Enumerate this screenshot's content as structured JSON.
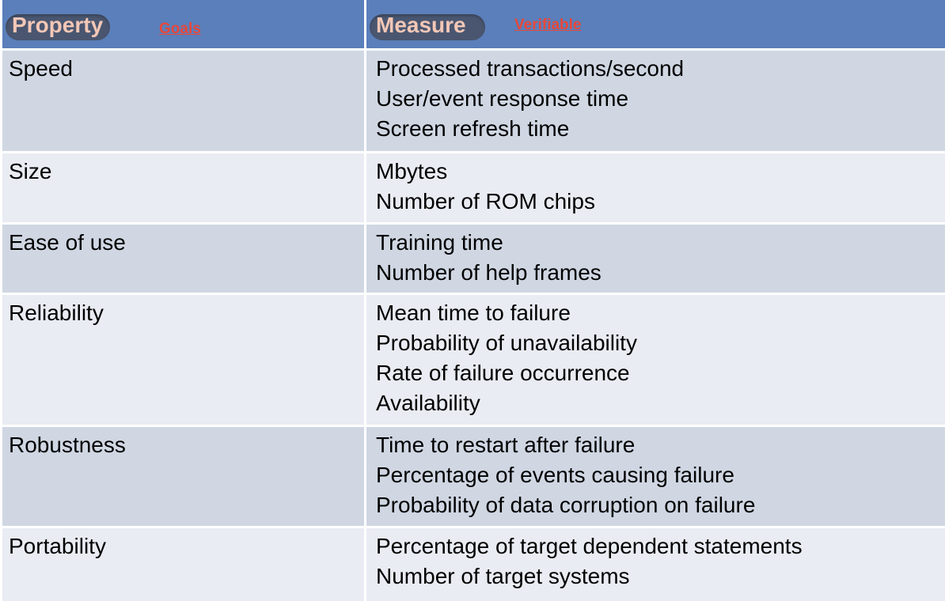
{
  "header": {
    "property_label": "Property",
    "goals_label": "Goals",
    "measure_label": "Measure",
    "verifiable_label": "Verifiable"
  },
  "rows": [
    {
      "property": "Speed",
      "measures": [
        "Processed transactions/second",
        "User/event response time",
        "Screen refresh time"
      ]
    },
    {
      "property": "Size",
      "measures": [
        "Mbytes",
        "Number of ROM chips"
      ]
    },
    {
      "property": "Ease of use",
      "measures": [
        "Training time",
        "Number of help frames"
      ]
    },
    {
      "property": "Reliability",
      "measures": [
        "Mean time to failure",
        "Probability of unavailability",
        "Rate of failure occurrence",
        "Availability"
      ]
    },
    {
      "property": "Robustness",
      "measures": [
        "Time to restart after failure",
        "Percentage of events causing failure",
        "Probability of data corruption on failure"
      ]
    },
    {
      "property": "Portability",
      "measures": [
        "Percentage of target dependent statements",
        "Number of target systems"
      ]
    }
  ],
  "colors": {
    "header_bg": "#5a7fba",
    "row_dark": "#d0d7e3",
    "row_light": "#e9ecf2",
    "header_text": "#f3c7b6",
    "link_red": "#e8473a"
  }
}
